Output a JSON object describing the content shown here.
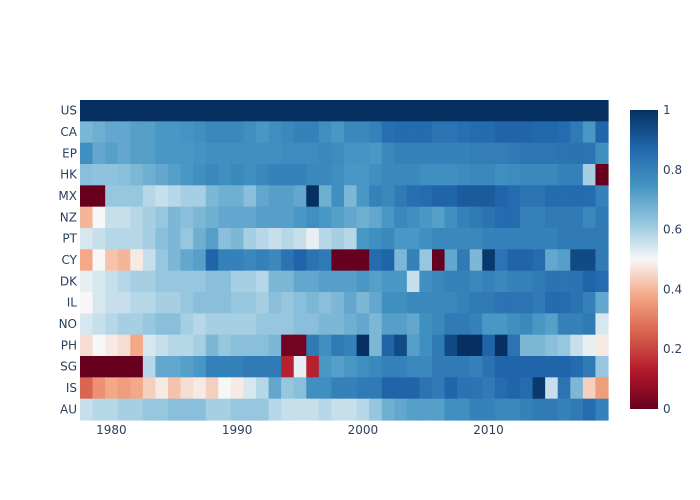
{
  "chart_data": {
    "type": "heatmap",
    "title": "",
    "xlabel": "",
    "ylabel": "",
    "x_start": 1978,
    "x_end": 2019,
    "x_ticks": [
      "1980",
      "1990",
      "2000",
      "2010"
    ],
    "x_tick_values": [
      1980,
      1990,
      2000,
      2010
    ],
    "colorscale": "RdBu",
    "colorbar_ticks": [
      "0",
      "0.2",
      "0.4",
      "0.6",
      "0.8",
      "1"
    ],
    "colorbar_tick_values": [
      0,
      0.2,
      0.4,
      0.6,
      0.8,
      1
    ],
    "zlim": [
      0,
      1
    ],
    "rows": [
      {
        "label": "US",
        "values": [
          1,
          1,
          1,
          1,
          1,
          1,
          1,
          1,
          1,
          1,
          1,
          1,
          1,
          1,
          1,
          1,
          1,
          1,
          1,
          1,
          1,
          1,
          1,
          1,
          1,
          1,
          1,
          1,
          1,
          1,
          1,
          1,
          1,
          1,
          1,
          1,
          1,
          1,
          1,
          1,
          1,
          1
        ]
      },
      {
        "label": "CA",
        "values": [
          0.66,
          0.68,
          0.7,
          0.7,
          0.72,
          0.72,
          0.74,
          0.74,
          0.75,
          0.76,
          0.78,
          0.78,
          0.78,
          0.76,
          0.74,
          0.76,
          0.78,
          0.8,
          0.8,
          0.76,
          0.74,
          0.78,
          0.78,
          0.8,
          0.85,
          0.86,
          0.86,
          0.86,
          0.84,
          0.84,
          0.85,
          0.86,
          0.86,
          0.88,
          0.88,
          0.88,
          0.87,
          0.87,
          0.86,
          0.82,
          0.74,
          0.88
        ]
      },
      {
        "label": "EP",
        "values": [
          0.76,
          0.7,
          0.72,
          0.7,
          0.72,
          0.72,
          0.74,
          0.74,
          0.74,
          0.75,
          0.76,
          0.76,
          0.76,
          0.76,
          0.76,
          0.76,
          0.77,
          0.77,
          0.77,
          0.78,
          0.77,
          0.75,
          0.75,
          0.74,
          0.78,
          0.8,
          0.8,
          0.8,
          0.8,
          0.8,
          0.8,
          0.81,
          0.81,
          0.81,
          0.82,
          0.83,
          0.83,
          0.83,
          0.84,
          0.84,
          0.84,
          0.76
        ]
      },
      {
        "label": "HK",
        "values": [
          0.64,
          0.63,
          0.63,
          0.64,
          0.66,
          0.68,
          0.7,
          0.72,
          0.74,
          0.76,
          0.78,
          0.76,
          0.78,
          0.76,
          0.78,
          0.8,
          0.8,
          0.8,
          0.78,
          0.78,
          0.76,
          0.74,
          0.74,
          0.76,
          0.78,
          0.78,
          0.78,
          0.76,
          0.76,
          0.76,
          0.77,
          0.78,
          0.78,
          0.76,
          0.77,
          0.78,
          0.78,
          0.78,
          0.8,
          0.8,
          0.6,
          0.0
        ]
      },
      {
        "label": "MX",
        "values": [
          0.0,
          0.0,
          0.62,
          0.62,
          0.62,
          0.58,
          0.56,
          0.58,
          0.6,
          0.6,
          0.66,
          0.68,
          0.68,
          0.64,
          0.7,
          0.72,
          0.72,
          0.7,
          1.0,
          0.68,
          0.76,
          0.66,
          0.74,
          0.8,
          0.78,
          0.82,
          0.85,
          0.86,
          0.88,
          0.88,
          0.9,
          0.9,
          0.9,
          0.88,
          0.86,
          0.84,
          0.84,
          0.86,
          0.86,
          0.86,
          0.86,
          0.8
        ]
      },
      {
        "label": "NZ",
        "values": [
          0.4,
          0.5,
          0.56,
          0.56,
          0.58,
          0.6,
          0.62,
          0.66,
          0.64,
          0.66,
          0.68,
          0.7,
          0.7,
          0.7,
          0.72,
          0.72,
          0.72,
          0.74,
          0.76,
          0.74,
          0.72,
          0.7,
          0.68,
          0.7,
          0.74,
          0.78,
          0.76,
          0.74,
          0.72,
          0.76,
          0.8,
          0.82,
          0.84,
          0.86,
          0.86,
          0.8,
          0.8,
          0.82,
          0.82,
          0.82,
          0.78,
          0.82
        ]
      },
      {
        "label": "PT",
        "values": [
          0.54,
          0.56,
          0.58,
          0.58,
          0.58,
          0.6,
          0.64,
          0.66,
          0.62,
          0.68,
          0.72,
          0.64,
          0.66,
          0.6,
          0.58,
          0.56,
          0.58,
          0.56,
          0.52,
          0.58,
          0.6,
          0.58,
          0.74,
          0.76,
          0.78,
          0.74,
          0.74,
          0.76,
          0.78,
          0.78,
          0.78,
          0.78,
          0.8,
          0.8,
          0.8,
          0.8,
          0.8,
          0.8,
          0.82,
          0.82,
          0.82,
          0.82
        ]
      },
      {
        "label": "CY",
        "values": [
          0.38,
          0.5,
          0.42,
          0.4,
          0.48,
          0.56,
          0.62,
          0.66,
          0.7,
          0.72,
          0.88,
          0.8,
          0.8,
          0.78,
          0.8,
          0.78,
          0.84,
          0.88,
          0.84,
          0.82,
          0.0,
          0.0,
          0.0,
          0.86,
          0.88,
          0.66,
          0.8,
          0.62,
          0.0,
          0.7,
          0.82,
          0.66,
          0.98,
          0.84,
          0.88,
          0.88,
          0.86,
          0.7,
          0.72,
          0.94,
          0.94,
          0.82
        ]
      },
      {
        "label": "DK",
        "values": [
          0.52,
          0.54,
          0.56,
          0.58,
          0.6,
          0.6,
          0.62,
          0.62,
          0.62,
          0.62,
          0.64,
          0.64,
          0.6,
          0.6,
          0.58,
          0.66,
          0.66,
          0.7,
          0.7,
          0.72,
          0.72,
          0.72,
          0.74,
          0.72,
          0.74,
          0.74,
          0.56,
          0.76,
          0.78,
          0.8,
          0.8,
          0.78,
          0.8,
          0.78,
          0.8,
          0.8,
          0.82,
          0.84,
          0.84,
          0.84,
          0.88,
          0.86
        ]
      },
      {
        "label": "IL",
        "values": [
          0.5,
          0.54,
          0.56,
          0.56,
          0.58,
          0.58,
          0.6,
          0.6,
          0.62,
          0.64,
          0.64,
          0.64,
          0.62,
          0.62,
          0.6,
          0.64,
          0.62,
          0.64,
          0.66,
          0.64,
          0.66,
          0.7,
          0.66,
          0.7,
          0.76,
          0.76,
          0.78,
          0.78,
          0.78,
          0.78,
          0.8,
          0.82,
          0.82,
          0.84,
          0.84,
          0.84,
          0.82,
          0.86,
          0.86,
          0.84,
          0.8,
          0.7
        ]
      },
      {
        "label": "NO",
        "values": [
          0.54,
          0.56,
          0.58,
          0.6,
          0.6,
          0.62,
          0.64,
          0.64,
          0.6,
          0.58,
          0.6,
          0.6,
          0.6,
          0.6,
          0.62,
          0.62,
          0.62,
          0.64,
          0.64,
          0.66,
          0.66,
          0.68,
          0.7,
          0.66,
          0.72,
          0.72,
          0.7,
          0.76,
          0.78,
          0.82,
          0.82,
          0.8,
          0.74,
          0.74,
          0.76,
          0.78,
          0.74,
          0.72,
          0.8,
          0.8,
          0.82,
          0.54
        ]
      },
      {
        "label": "PH",
        "values": [
          0.46,
          0.5,
          0.48,
          0.46,
          0.38,
          0.54,
          0.56,
          0.58,
          0.58,
          0.6,
          0.66,
          0.62,
          0.64,
          0.64,
          0.64,
          0.66,
          0.02,
          0.02,
          0.82,
          0.76,
          0.82,
          0.8,
          1.0,
          0.66,
          0.88,
          0.94,
          0.72,
          0.76,
          0.82,
          0.94,
          1.0,
          1.0,
          0.88,
          1.0,
          0.84,
          0.66,
          0.66,
          0.64,
          0.62,
          0.56,
          0.52,
          0.48
        ]
      },
      {
        "label": "SG",
        "values": [
          0.0,
          0.0,
          0.0,
          0.0,
          0.0,
          0.58,
          0.7,
          0.7,
          0.72,
          0.74,
          0.8,
          0.8,
          0.8,
          0.82,
          0.82,
          0.82,
          0.14,
          0.52,
          0.14,
          0.74,
          0.72,
          0.74,
          0.76,
          0.78,
          0.8,
          0.8,
          0.78,
          0.78,
          0.82,
          0.82,
          0.82,
          0.8,
          0.84,
          0.88,
          0.88,
          0.88,
          0.88,
          0.88,
          0.88,
          0.86,
          0.82,
          0.62
        ]
      },
      {
        "label": "IS",
        "values": [
          0.26,
          0.34,
          0.38,
          0.36,
          0.38,
          0.44,
          0.48,
          0.42,
          0.46,
          0.48,
          0.44,
          0.5,
          0.48,
          0.54,
          0.58,
          0.7,
          0.62,
          0.64,
          0.76,
          0.76,
          0.8,
          0.8,
          0.82,
          0.82,
          0.88,
          0.88,
          0.88,
          0.84,
          0.82,
          0.88,
          0.84,
          0.84,
          0.82,
          0.86,
          0.88,
          0.86,
          0.98,
          0.56,
          0.84,
          0.66,
          0.44,
          0.36
        ]
      },
      {
        "label": "AU",
        "values": [
          0.56,
          0.58,
          0.58,
          0.6,
          0.6,
          0.62,
          0.62,
          0.64,
          0.64,
          0.64,
          0.6,
          0.6,
          0.62,
          0.62,
          0.62,
          0.58,
          0.56,
          0.56,
          0.56,
          0.58,
          0.56,
          0.56,
          0.58,
          0.62,
          0.68,
          0.7,
          0.72,
          0.72,
          0.72,
          0.76,
          0.76,
          0.8,
          0.8,
          0.78,
          0.78,
          0.8,
          0.82,
          0.82,
          0.8,
          0.82,
          0.86,
          0.8
        ]
      }
    ]
  }
}
